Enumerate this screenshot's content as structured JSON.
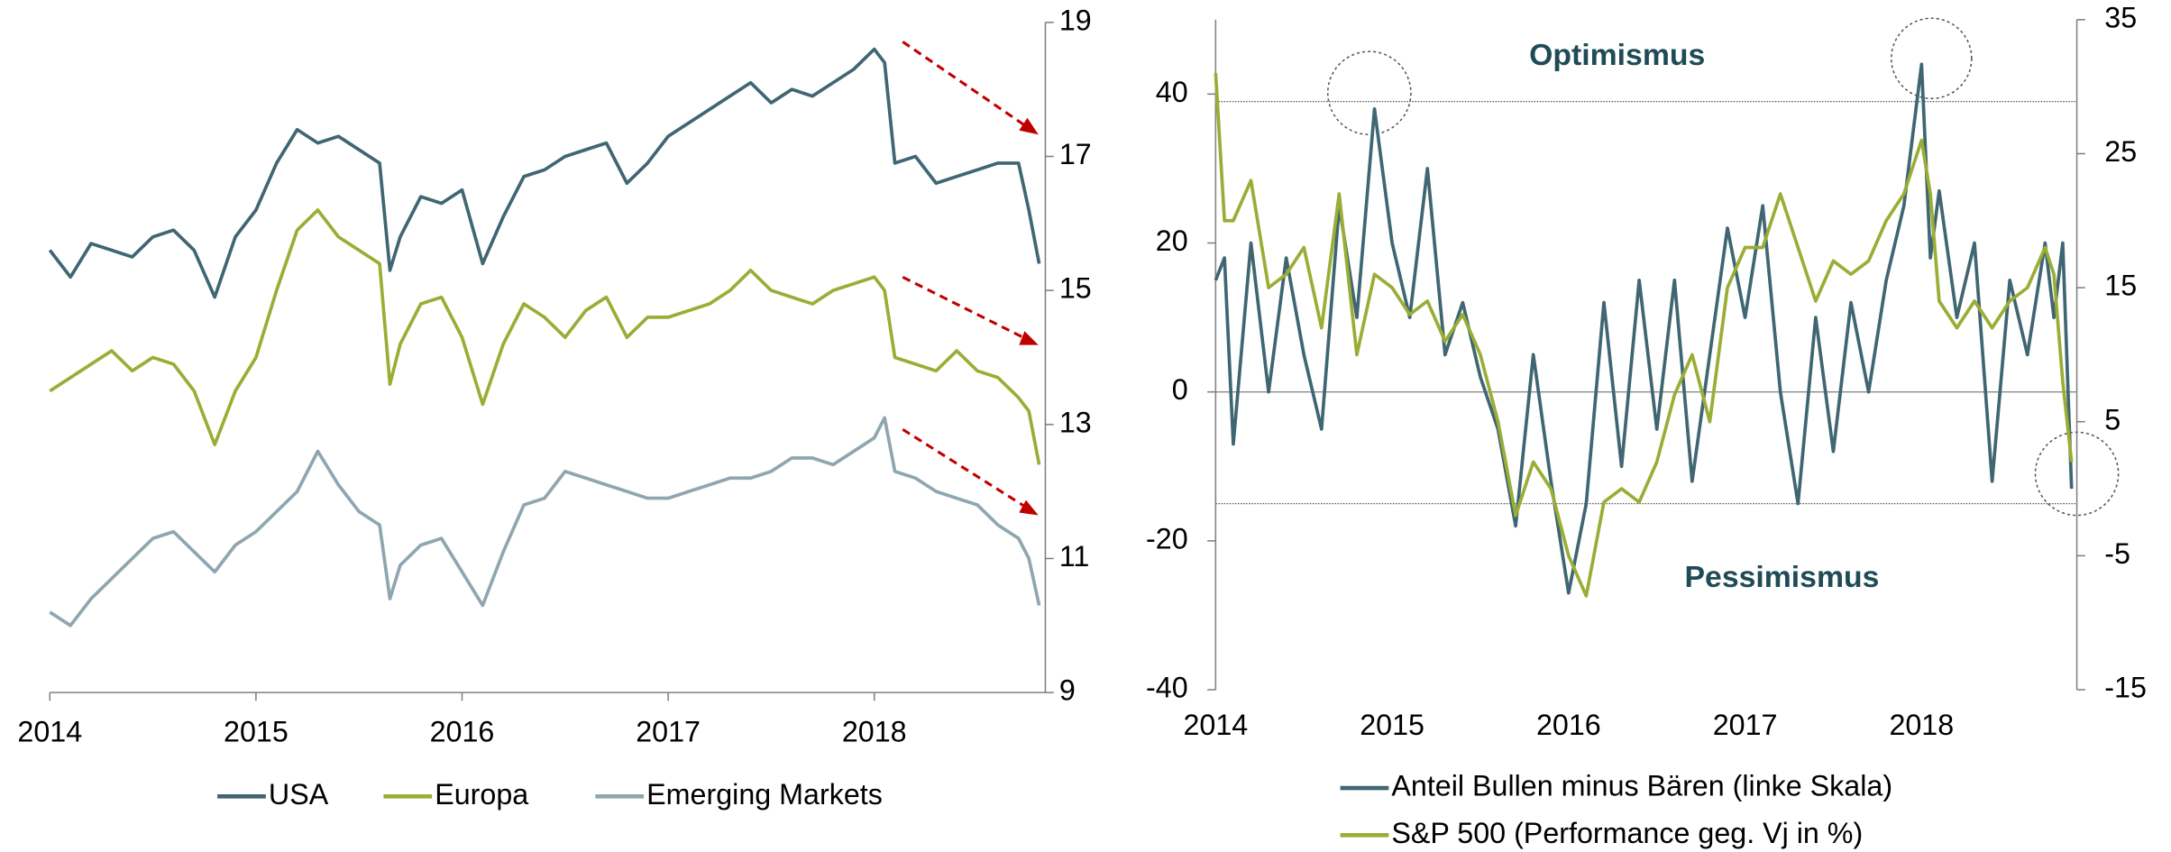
{
  "chart_data": [
    {
      "type": "line",
      "x": [
        2014.0,
        2014.1,
        2014.2,
        2014.3,
        2014.4,
        2014.5,
        2014.6,
        2014.7,
        2014.8,
        2014.9,
        2015.0,
        2015.1,
        2015.2,
        2015.3,
        2015.4,
        2015.5,
        2015.6,
        2015.65,
        2015.7,
        2015.8,
        2015.9,
        2016.0,
        2016.1,
        2016.2,
        2016.3,
        2016.4,
        2016.5,
        2016.6,
        2016.7,
        2016.8,
        2016.9,
        2017.0,
        2017.1,
        2017.2,
        2017.3,
        2017.4,
        2017.5,
        2017.6,
        2017.7,
        2017.8,
        2017.9,
        2018.0,
        2018.05,
        2018.1,
        2018.2,
        2018.3,
        2018.4,
        2018.5,
        2018.6,
        2018.7,
        2018.75,
        2018.8
      ],
      "xlim": [
        2014,
        2018.83
      ],
      "xticks": [
        2014,
        2015,
        2016,
        2017,
        2018
      ],
      "ylim": [
        9,
        19
      ],
      "yticks": [
        9,
        11,
        13,
        15,
        17,
        19
      ],
      "legend": "bottom",
      "series": [
        {
          "name": "USA",
          "color": "#3f6672",
          "values": [
            15.6,
            15.2,
            15.7,
            15.6,
            15.5,
            15.8,
            15.9,
            15.6,
            14.9,
            15.8,
            16.2,
            16.9,
            17.4,
            17.2,
            17.3,
            17.1,
            16.9,
            15.3,
            15.8,
            16.4,
            16.3,
            16.5,
            15.4,
            16.1,
            16.7,
            16.8,
            17.0,
            17.1,
            17.2,
            16.6,
            16.9,
            17.3,
            17.5,
            17.7,
            17.9,
            18.1,
            17.8,
            18.0,
            17.9,
            18.1,
            18.3,
            18.6,
            18.4,
            16.9,
            17.0,
            16.6,
            16.7,
            16.8,
            16.9,
            16.9,
            16.2,
            15.4
          ]
        },
        {
          "name": "Europa",
          "color": "#9aad35",
          "values": [
            13.5,
            13.7,
            13.9,
            14.1,
            13.8,
            14.0,
            13.9,
            13.5,
            12.7,
            13.5,
            14.0,
            15.0,
            15.9,
            16.2,
            15.8,
            15.6,
            15.4,
            13.6,
            14.2,
            14.8,
            14.9,
            14.3,
            13.3,
            14.2,
            14.8,
            14.6,
            14.3,
            14.7,
            14.9,
            14.3,
            14.6,
            14.6,
            14.7,
            14.8,
            15.0,
            15.3,
            15.0,
            14.9,
            14.8,
            15.0,
            15.1,
            15.2,
            15.0,
            14.0,
            13.9,
            13.8,
            14.1,
            13.8,
            13.7,
            13.4,
            13.2,
            12.4
          ]
        },
        {
          "name": "Emerging Markets",
          "color": "#8fa6b0",
          "values": [
            10.2,
            10.0,
            10.4,
            10.7,
            11.0,
            11.3,
            11.4,
            11.1,
            10.8,
            11.2,
            11.4,
            11.7,
            12.0,
            12.6,
            12.1,
            11.7,
            11.5,
            10.4,
            10.9,
            11.2,
            11.3,
            10.8,
            10.3,
            11.1,
            11.8,
            11.9,
            12.3,
            12.2,
            12.1,
            12.0,
            11.9,
            11.9,
            12.0,
            12.1,
            12.2,
            12.2,
            12.3,
            12.5,
            12.5,
            12.4,
            12.6,
            12.8,
            13.1,
            12.3,
            12.2,
            12.0,
            11.9,
            11.8,
            11.5,
            11.3,
            11.0,
            10.3
          ]
        }
      ]
    },
    {
      "type": "line",
      "x": [
        2014.0,
        2014.05,
        2014.1,
        2014.2,
        2014.3,
        2014.4,
        2014.5,
        2014.6,
        2014.7,
        2014.8,
        2014.9,
        2015.0,
        2015.1,
        2015.2,
        2015.3,
        2015.4,
        2015.5,
        2015.6,
        2015.7,
        2015.8,
        2015.9,
        2016.0,
        2016.1,
        2016.2,
        2016.3,
        2016.4,
        2016.5,
        2016.6,
        2016.7,
        2016.8,
        2016.9,
        2017.0,
        2017.1,
        2017.2,
        2017.3,
        2017.4,
        2017.5,
        2017.6,
        2017.7,
        2017.8,
        2017.9,
        2018.0,
        2018.05,
        2018.1,
        2018.2,
        2018.3,
        2018.4,
        2018.5,
        2018.6,
        2018.7,
        2018.75,
        2018.8,
        2018.85
      ],
      "xlim": [
        2014,
        2018.88
      ],
      "xticks": [
        2014,
        2015,
        2016,
        2017,
        2018
      ],
      "ylim": [
        -40,
        50
      ],
      "yticks": [
        -40,
        -20,
        0,
        20,
        40
      ],
      "y2lim": [
        -15,
        35
      ],
      "y2ticks": [
        -15,
        -5,
        5,
        15,
        25,
        35
      ],
      "legend": "bottom",
      "reference_lines": [
        {
          "value": 39,
          "label": "Optimismus"
        },
        {
          "value": -15,
          "label": "Pessimismus"
        }
      ],
      "series": [
        {
          "name": "Anteil Bullen minus Bären (linke Skala)",
          "color": "#3f6672",
          "values": [
            15,
            18,
            -7,
            20,
            0,
            18,
            5,
            -5,
            25,
            10,
            38,
            20,
            10,
            30,
            5,
            12,
            2,
            -5,
            -18,
            5,
            -12,
            -27,
            -15,
            12,
            -10,
            15,
            -5,
            15,
            -12,
            5,
            22,
            10,
            25,
            0,
            -15,
            10,
            -8,
            12,
            0,
            15,
            25,
            44,
            18,
            27,
            10,
            20,
            -12,
            15,
            5,
            20,
            10,
            20,
            -13
          ]
        },
        {
          "name": "S&P 500 (Performance geg. Vj in %)",
          "color": "#9aad35",
          "axis": "y2",
          "values": [
            31,
            20,
            20,
            23,
            15,
            16,
            18,
            12,
            22,
            10,
            16,
            15,
            13,
            14,
            11,
            13,
            10,
            5,
            -2,
            2,
            0,
            -5,
            -8,
            -1,
            0,
            -1,
            2,
            7,
            10,
            5,
            15,
            18,
            18,
            22,
            18,
            14,
            17,
            16,
            17,
            20,
            22,
            26,
            22,
            14,
            12,
            14,
            12,
            14,
            15,
            18,
            16,
            8,
            2
          ]
        }
      ]
    }
  ]
}
